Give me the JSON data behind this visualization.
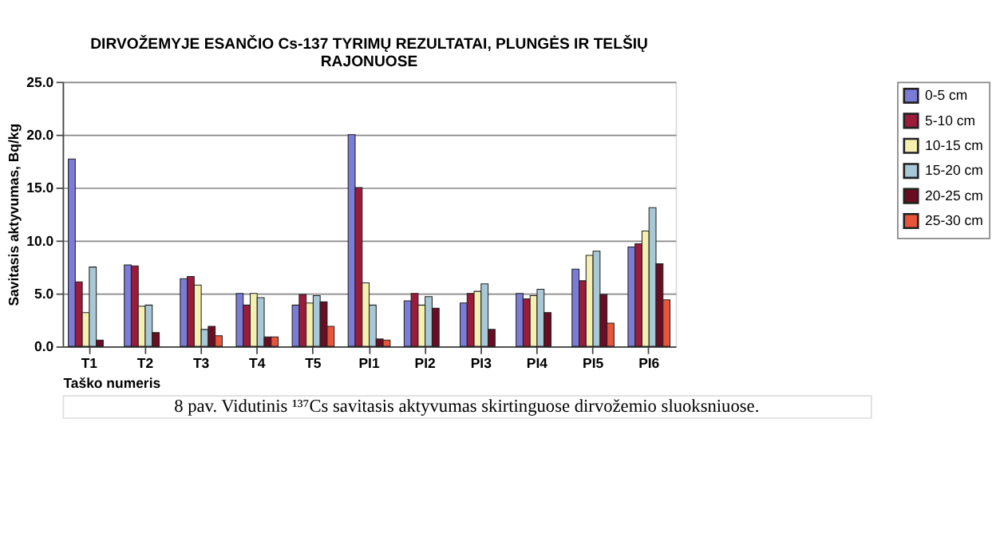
{
  "chart_data": {
    "type": "bar",
    "title": [
      "DIRVOŽEMYJE ESANČIO Cs-137 TYRIMŲ REZULTATAI, PLUNGĖS IR TELŠIŲ",
      "RAJONUOSE"
    ],
    "xlabel": "Taško numeris",
    "ylabel": "Savitasis aktyvumas, Bq/kg",
    "categories": [
      "T1",
      "T2",
      "T3",
      "T4",
      "T5",
      "PI1",
      "PI2",
      "PI3",
      "PI4",
      "PI5",
      "PI6"
    ],
    "series": [
      {
        "name": "0-5 cm",
        "color": "#7b7bd8",
        "values": [
          17.7,
          7.7,
          6.4,
          5.0,
          3.9,
          20.0,
          4.3,
          4.1,
          5.0,
          7.3,
          9.4
        ]
      },
      {
        "name": "5-10 cm",
        "color": "#9b1b3a",
        "values": [
          6.1,
          7.6,
          6.6,
          3.9,
          4.9,
          15.0,
          5.0,
          5.0,
          4.5,
          6.2,
          9.7
        ]
      },
      {
        "name": "10-15 cm",
        "color": "#f5f0b0",
        "values": [
          3.2,
          3.8,
          5.8,
          5.0,
          4.1,
          6.0,
          3.9,
          5.2,
          4.8,
          8.6,
          10.9
        ]
      },
      {
        "name": "15-20 cm",
        "color": "#a8c8d6",
        "values": [
          7.5,
          3.9,
          1.6,
          4.6,
          4.8,
          3.9,
          4.7,
          5.9,
          5.4,
          9.0,
          13.1
        ]
      },
      {
        "name": "20-25 cm",
        "color": "#6a0d22",
        "values": [
          0.6,
          1.3,
          1.9,
          0.9,
          4.2,
          0.7,
          3.6,
          1.6,
          3.2,
          4.9,
          7.8
        ]
      },
      {
        "name": "25-30 cm",
        "color": "#e8553a",
        "values": [
          null,
          null,
          1.0,
          0.9,
          1.9,
          0.6,
          null,
          null,
          null,
          2.2,
          4.4
        ]
      }
    ],
    "ylim": [
      0,
      25
    ],
    "yticks": [
      {
        "value": 0,
        "label": "0.0"
      },
      {
        "value": 5,
        "label": "5.0"
      },
      {
        "value": 10,
        "label": "10.0"
      },
      {
        "value": 15,
        "label": "15.0"
      },
      {
        "value": 20,
        "label": "20.0"
      },
      {
        "value": 25,
        "label": "25.0"
      }
    ],
    "grid": "y",
    "legend": "right",
    "annotations": [
      "8 pav. Vidutinis ¹³⁷Cs savitasis aktyvumas skirtinguose dirvožemio sluoksniuose."
    ]
  }
}
